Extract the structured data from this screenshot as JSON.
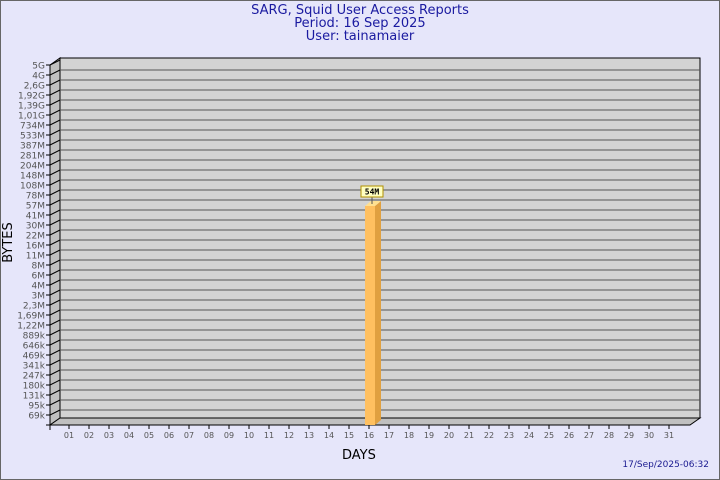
{
  "chart_data": {
    "type": "bar",
    "title": "SARG, Squid User Access Reports",
    "subtitle_period": "Period: 16 Sep 2025",
    "subtitle_user": "User: tainamaier",
    "xlabel": "DAYS",
    "ylabel": "BYTES",
    "y_scale": "log",
    "y_ticks": [
      "5G",
      "4G",
      "2,6G",
      "1,92G",
      "1,39G",
      "1,01G",
      "734M",
      "533M",
      "387M",
      "281M",
      "204M",
      "148M",
      "108M",
      "78M",
      "57M",
      "41M",
      "30M",
      "22M",
      "16M",
      "11M",
      "8M",
      "6M",
      "4M",
      "3M",
      "2,3M",
      "1,69M",
      "1,22M",
      "889k",
      "646k",
      "469k",
      "341k",
      "247k",
      "180k",
      "131k",
      "95k",
      "69k"
    ],
    "categories": [
      "01",
      "02",
      "03",
      "04",
      "05",
      "06",
      "07",
      "08",
      "09",
      "10",
      "11",
      "12",
      "13",
      "14",
      "15",
      "16",
      "17",
      "18",
      "19",
      "20",
      "21",
      "22",
      "23",
      "24",
      "25",
      "26",
      "27",
      "28",
      "29",
      "30",
      "31"
    ],
    "bars": [
      {
        "day": "16",
        "value_label": "54M"
      }
    ],
    "grid": true,
    "timestamp": "17/Sep/2025-06:32",
    "colors": {
      "background": "#e6e6fa",
      "plot": "#d3d3d3",
      "bar": "#ffc060",
      "bar_side": "#e0a040",
      "title": "#1a1aa0"
    }
  }
}
